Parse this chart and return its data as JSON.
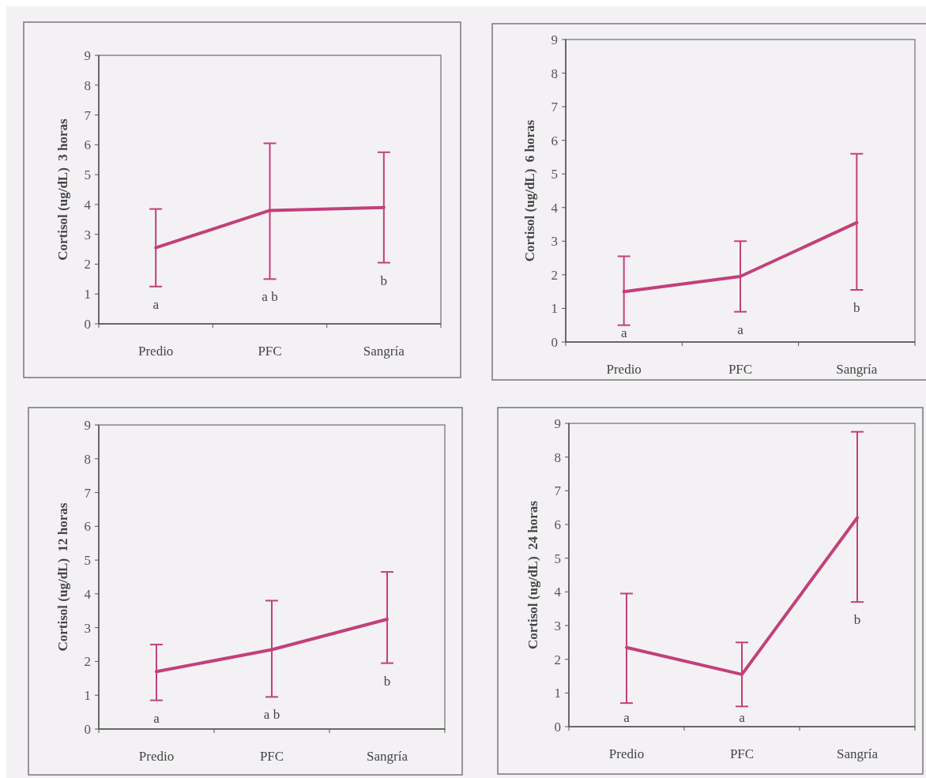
{
  "chart_data": [
    {
      "type": "line",
      "ylabel": "Cortisol (ug/dL)  3 horas",
      "categories": [
        "Predio",
        "PFC",
        "Sangría"
      ],
      "series": [
        {
          "color": "#c2407a",
          "values": [
            2.55,
            3.8,
            3.9
          ],
          "errors": [
            [
              1.25,
              3.85
            ],
            [
              1.5,
              6.05
            ],
            [
              2.05,
              5.75
            ]
          ]
        }
      ],
      "ylim": [
        0,
        9
      ],
      "yticks": [
        0,
        1,
        2,
        3,
        4,
        5,
        6,
        7,
        8,
        9
      ],
      "marker": "none",
      "line_style": "solid",
      "annotations": [
        "a",
        "a b",
        "b"
      ]
    },
    {
      "type": "line",
      "ylabel": "Cortisol (ug/dL)  6 horas",
      "categories": [
        "Predio",
        "PFC",
        "Sangría"
      ],
      "series": [
        {
          "color": "#c2407a",
          "values": [
            1.5,
            1.95,
            3.55
          ],
          "errors": [
            [
              0.5,
              2.55
            ],
            [
              0.9,
              3.0
            ],
            [
              1.55,
              5.6
            ]
          ]
        }
      ],
      "ylim": [
        0,
        9
      ],
      "yticks": [
        0,
        1,
        2,
        3,
        4,
        5,
        6,
        7,
        8,
        9
      ],
      "marker": "none",
      "line_style": "solid",
      "annotations": [
        "a",
        "a",
        "b"
      ]
    },
    {
      "type": "line",
      "ylabel": "Cortisol (ug/dL)  12 horas",
      "categories": [
        "Predio",
        "PFC",
        "Sangría"
      ],
      "series": [
        {
          "color": "#c2407a",
          "values": [
            1.7,
            2.35,
            3.25
          ],
          "errors": [
            [
              0.85,
              2.5
            ],
            [
              0.95,
              3.8
            ],
            [
              1.95,
              4.65
            ]
          ]
        }
      ],
      "ylim": [
        0,
        9
      ],
      "yticks": [
        0,
        1,
        2,
        3,
        4,
        5,
        6,
        7,
        8,
        9
      ],
      "marker": "none",
      "line_style": "solid",
      "annotations": [
        "a",
        "a b",
        "b"
      ]
    },
    {
      "type": "line",
      "ylabel": "Cortisol (ug/dL)  24 horas",
      "categories": [
        "Predio",
        "PFC",
        "Sangría"
      ],
      "series": [
        {
          "color": "#c2407a",
          "values": [
            2.35,
            1.55,
            6.2
          ],
          "errors": [
            [
              0.7,
              3.95
            ],
            [
              0.6,
              2.5
            ],
            [
              3.7,
              8.75
            ]
          ]
        }
      ],
      "ylim": [
        0,
        9
      ],
      "yticks": [
        0,
        1,
        2,
        3,
        4,
        5,
        6,
        7,
        8,
        9
      ],
      "marker": "none",
      "line_style": "solid",
      "annotations": [
        "a",
        "a",
        "b"
      ]
    }
  ]
}
